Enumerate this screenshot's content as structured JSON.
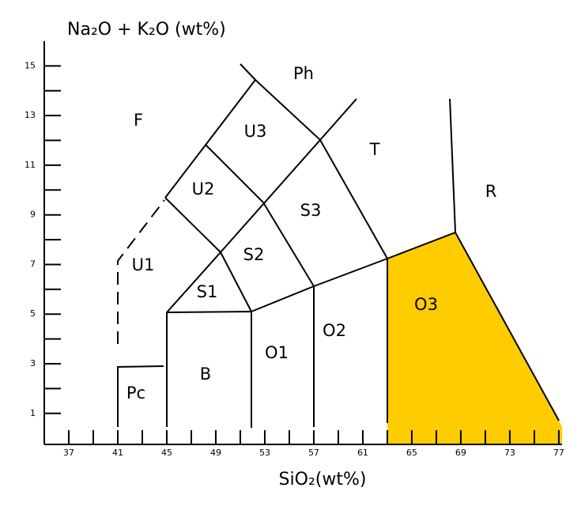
{
  "chart_data": {
    "type": "tas",
    "ylabel": "Na₂O + K₂O (wt%)",
    "xlabel": "SiO₂(wt%)",
    "xlim": [
      35,
      77.2
    ],
    "ylim": [
      -0.25,
      16
    ],
    "xticks": [
      37,
      41,
      45,
      49,
      53,
      57,
      61,
      65,
      69,
      73,
      77
    ],
    "xminorticks": [
      39,
      43,
      47,
      51,
      55,
      59,
      63,
      67,
      71,
      75
    ],
    "yticks": [
      1,
      3,
      5,
      7,
      9,
      11,
      13,
      15
    ],
    "yminorticks": [
      2,
      4,
      6,
      8,
      10,
      12,
      14
    ],
    "fields": [
      "F",
      "Ph",
      "U3",
      "T",
      "U2",
      "S3",
      "R",
      "U1",
      "S2",
      "O3",
      "S1",
      "O2",
      "O1",
      "B",
      "Pc"
    ],
    "highlight_color": "#ffcc00"
  }
}
